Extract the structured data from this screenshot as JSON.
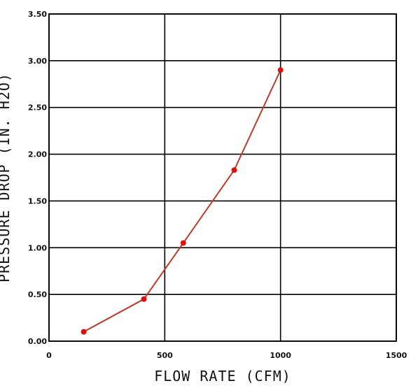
{
  "chart_data": {
    "type": "line",
    "title": "",
    "xlabel": "FLOW RATE (CFM)",
    "ylabel": "PRESSURE DROP (IN. H2O)",
    "xlim": [
      0,
      1500
    ],
    "ylim": [
      0.0,
      3.5
    ],
    "x_ticks": [
      0,
      500,
      1000,
      1500
    ],
    "x_tick_labels": [
      "0",
      "500",
      "1000",
      "1500"
    ],
    "y_ticks": [
      0.0,
      0.5,
      1.0,
      1.5,
      2.0,
      2.5,
      3.0,
      3.5
    ],
    "y_tick_labels": [
      "0.00",
      "0.50",
      "1.00",
      "1.50",
      "2.00",
      "2.50",
      "3.00",
      "3.50"
    ],
    "grid": true,
    "series": [
      {
        "x": [
          150,
          410,
          580,
          800,
          1000
        ],
        "y": [
          0.1,
          0.45,
          1.05,
          1.83,
          2.9
        ]
      }
    ],
    "line_color": "#c0392b",
    "point_color": "#e0100f"
  }
}
